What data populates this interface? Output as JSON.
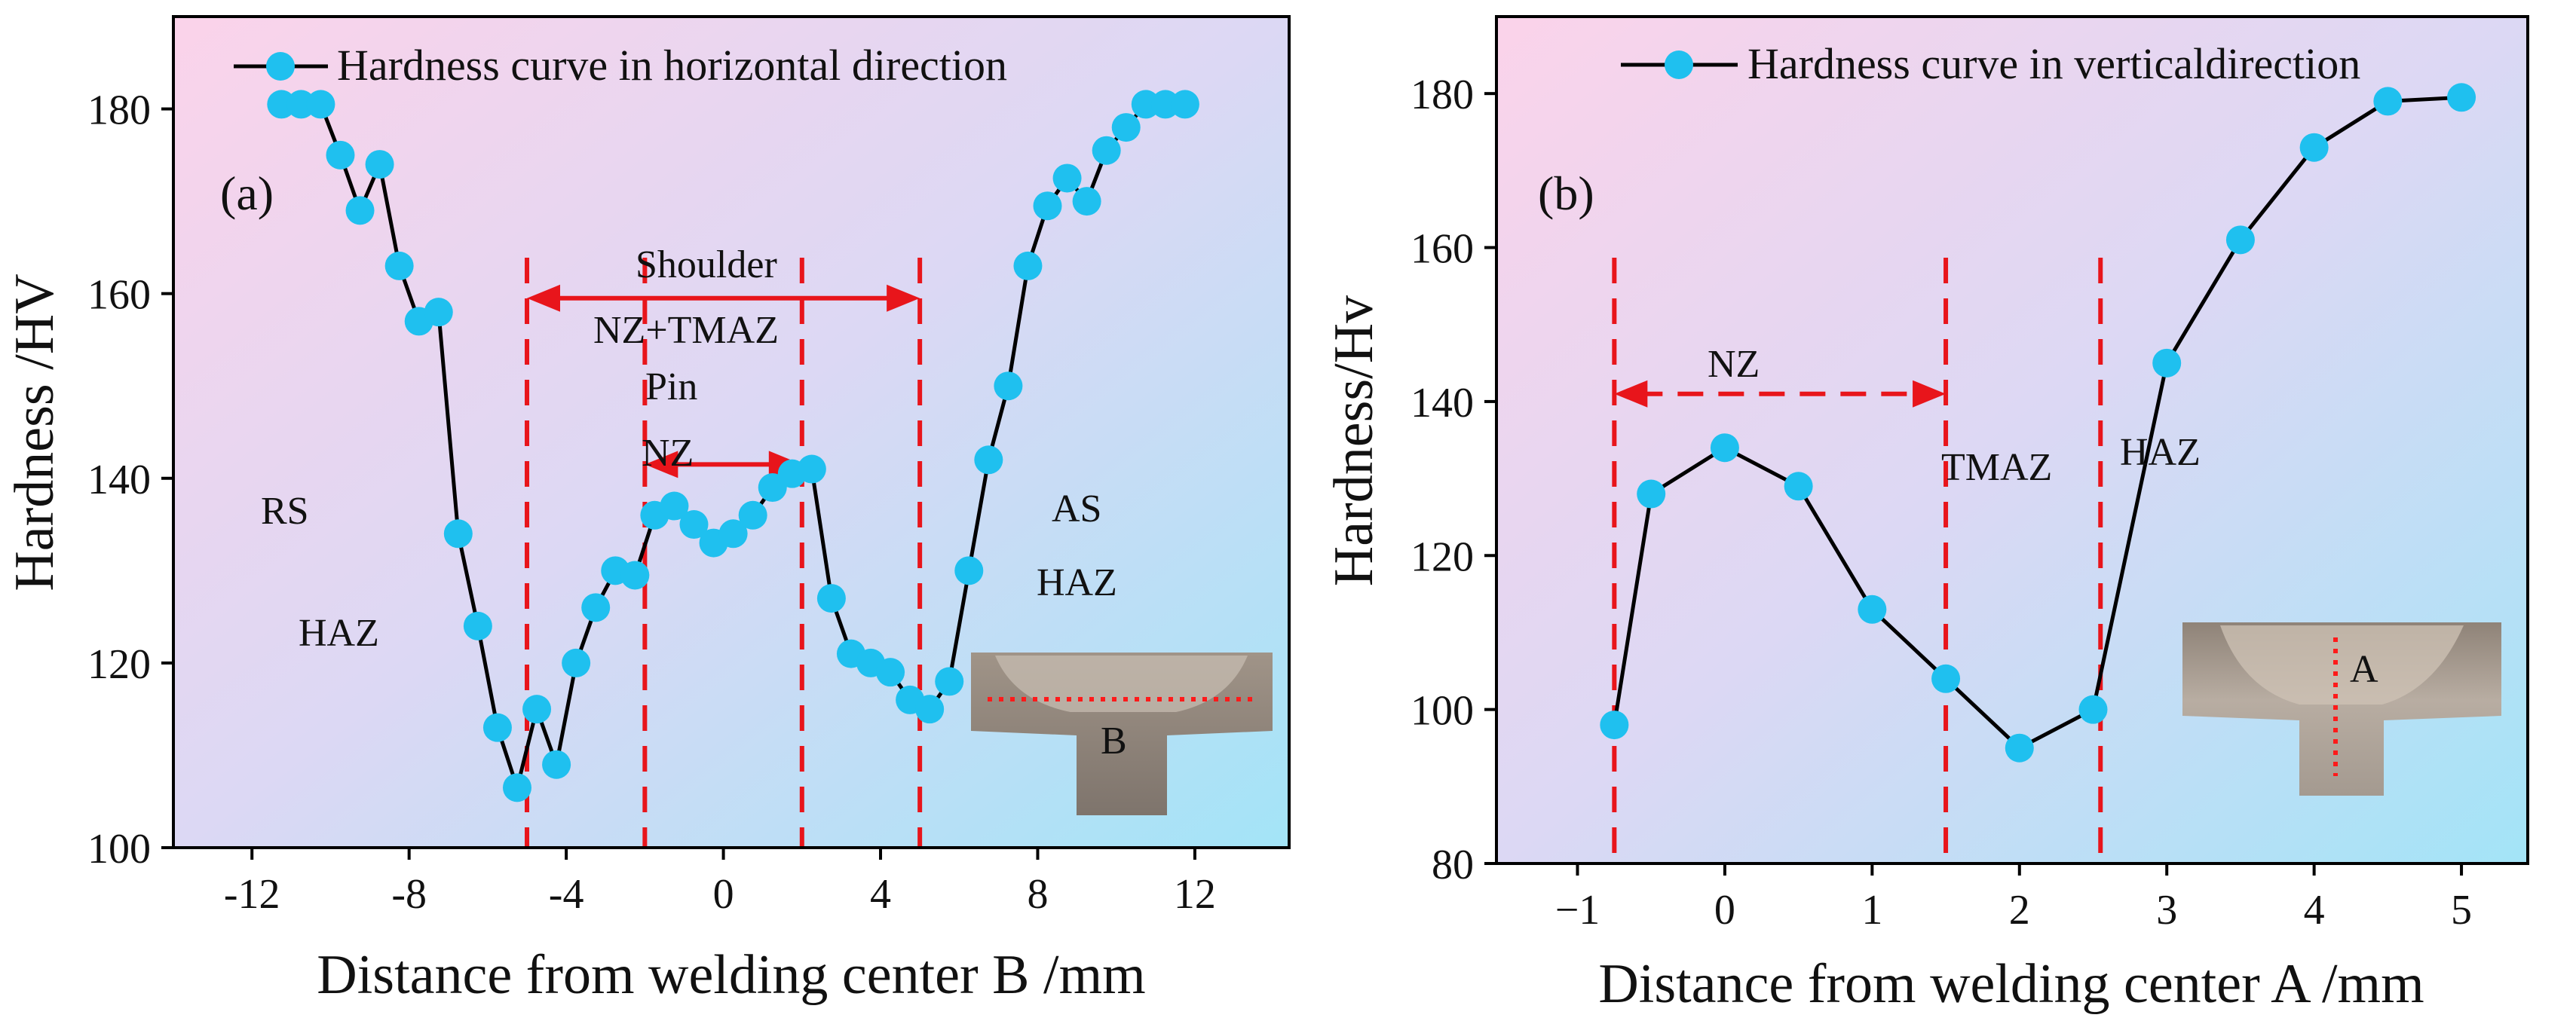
{
  "chart_data": [
    {
      "type": "line",
      "panel_label": "(a)",
      "xlabel": "Distance from welding center B /mm",
      "ylabel": "Hardness /HV",
      "xlim": [
        -14.0,
        14.4
      ],
      "ylim": [
        100,
        190
      ],
      "xticks": [
        -12,
        -8,
        -4,
        0,
        4,
        8,
        12
      ],
      "yticks": [
        100,
        120,
        140,
        160,
        180
      ],
      "xtick_labels": [
        "-12",
        "-8",
        "-4",
        "0",
        "4",
        "8",
        "12"
      ],
      "ytick_labels": [
        "100",
        "120",
        "140",
        "160",
        "180"
      ],
      "legend": "Hardness curve in horizontal direction",
      "series": [
        {
          "name": "Hardness curve in horizontal direction",
          "x": [
            -11.25,
            -10.75,
            -10.25,
            -9.75,
            -9.25,
            -8.75,
            -8.25,
            -7.75,
            -7.25,
            -6.75,
            -6.25,
            -5.75,
            -5.25,
            -4.75,
            -4.25,
            -3.75,
            -3.25,
            -2.75,
            -2.25,
            -1.75,
            -1.25,
            -0.75,
            -0.25,
            0.25,
            0.75,
            1.25,
            1.75,
            2.25,
            2.75,
            3.25,
            3.75,
            4.25,
            4.75,
            5.25,
            5.75,
            6.25,
            6.75,
            7.25,
            7.75,
            8.25,
            8.75,
            9.25,
            9.75,
            10.25,
            10.75,
            11.25,
            11.75
          ],
          "y": [
            180.5,
            180.5,
            180.5,
            175,
            169,
            174,
            163,
            157,
            158,
            134,
            124,
            113,
            106.5,
            115,
            109,
            120,
            126,
            130,
            129.5,
            136,
            137,
            135,
            133,
            134,
            136,
            139,
            140.5,
            141,
            127,
            121,
            120,
            119,
            116,
            115,
            118,
            130,
            142,
            150,
            163,
            169.5,
            172.5,
            170,
            175.5,
            178,
            180.5,
            180.5,
            180.5
          ]
        }
      ],
      "reference_lines_x": [
        -5,
        -2,
        2,
        5
      ],
      "spans": [
        {
          "label": "Shoulder",
          "from": -5,
          "to": 5,
          "y": 159.5,
          "style": "solid"
        },
        {
          "label": "Pin",
          "from": -2,
          "to": 2,
          "y": 141.5,
          "style": "solid"
        }
      ],
      "annotations": [
        "Shoulder",
        "NZ+TMAZ",
        "Pin",
        "NZ",
        "RS",
        "HAZ",
        "AS",
        "HAZ"
      ],
      "inset_label": "B"
    },
    {
      "type": "line",
      "panel_label": "(b)",
      "xlabel": "Distance from welding center A /mm",
      "ylabel": "Hardness/Hv",
      "xlim": [
        -1.55,
        5.45
      ],
      "ylim": [
        80,
        190
      ],
      "xticks": [
        -1,
        0,
        1,
        2,
        3,
        4,
        5
      ],
      "yticks": [
        80,
        100,
        120,
        140,
        160,
        180
      ],
      "xtick_labels": [
        "−1",
        "0",
        "1",
        "2",
        "3",
        "4",
        "5"
      ],
      "ytick_labels": [
        "80",
        "100",
        "120",
        "140",
        "160",
        "180"
      ],
      "legend": "Hardness curve in verticaldirection",
      "series": [
        {
          "name": "Hardness curve in verticaldirection",
          "x": [
            -0.75,
            -0.5,
            0,
            0.5,
            1,
            1.5,
            2,
            2.5,
            3,
            3.5,
            4,
            4.5,
            5
          ],
          "y": [
            98,
            128,
            134,
            129,
            113,
            104,
            95,
            100,
            145,
            161,
            173,
            179,
            179.5
          ]
        }
      ],
      "reference_lines_x": [
        -0.75,
        1.5,
        2.55
      ],
      "spans": [
        {
          "label": "NZ",
          "from": -0.75,
          "to": 1.5,
          "y": 141,
          "style": "dashed"
        }
      ],
      "annotations": [
        "NZ",
        "TMAZ",
        "HAZ"
      ],
      "inset_label": "A"
    }
  ],
  "colors": {
    "marker": "#1fc0ef",
    "line": "#000000",
    "reference": "#e8151b",
    "bg_pink": "#fbd3ea",
    "bg_violet": "#ded8f4",
    "bg_cyan": "#a5e3f7"
  }
}
